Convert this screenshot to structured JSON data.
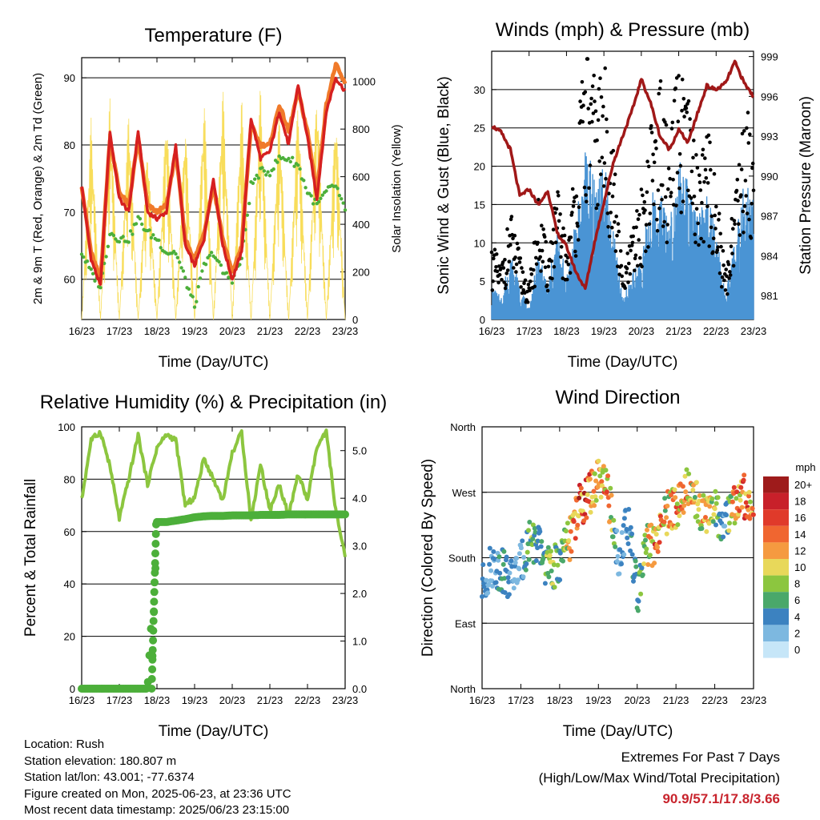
{
  "footer": {
    "location": "Location: Rush",
    "elevation": "Station elevation: 180.807 m",
    "latlon": "Station lat/lon: 43.001; -77.6374",
    "created": "Figure created on Mon, 2025-06-23, at 23:36 UTC",
    "recent": "Most recent data timestamp: 2025/06/23 23:15:00"
  },
  "extremes": {
    "title": "Extremes For Past 7 Days",
    "subtitle": "(High/Low/Max Wind/Total Precipitation)",
    "values": "90.9/57.1/17.8/3.66",
    "color": "#c8232c"
  },
  "chart_data": [
    {
      "type": "line",
      "title": "Temperature (F)",
      "xlabel": "Time (Day/UTC)",
      "ylabel": "2m & 9m T (Red, Orange) & 2m Td (Green)",
      "y2label": "Solar Insolation (Yellow)",
      "categories": [
        "16/23",
        "17/23",
        "18/23",
        "19/23",
        "20/23",
        "21/23",
        "22/23",
        "23/23"
      ],
      "x": [
        0,
        0.25,
        0.5,
        0.75,
        1,
        1.25,
        1.5,
        1.75,
        2,
        2.25,
        2.5,
        2.75,
        3,
        3.25,
        3.5,
        3.75,
        4,
        4.25,
        4.5,
        4.75,
        5,
        5.25,
        5.5,
        5.75,
        6,
        6.25,
        6.5,
        6.75,
        7
      ],
      "ylim": [
        54,
        93
      ],
      "yticks": [
        60,
        70,
        80,
        90
      ],
      "y2lim": [
        0,
        1100
      ],
      "y2ticks": [
        0,
        200,
        400,
        600,
        800,
        1000
      ],
      "series": [
        {
          "color": "#d62020",
          "values": [
            74,
            63,
            59,
            82,
            72,
            70,
            82,
            70,
            69,
            70,
            80,
            65,
            62,
            66,
            75,
            65,
            60,
            64,
            84,
            78,
            79,
            85,
            80,
            89,
            81,
            72,
            85,
            90,
            88
          ]
        },
        {
          "color": "#f07a2a",
          "values": [
            74,
            64,
            60,
            81,
            73,
            71,
            81,
            71,
            70,
            71,
            79,
            66,
            63,
            67,
            74,
            66,
            61,
            65,
            83,
            80,
            80,
            86,
            82,
            88,
            82,
            73,
            86,
            92,
            89
          ]
        },
        {
          "color": "#4caf3a",
          "values": [
            64,
            61,
            59,
            67,
            66,
            66,
            69,
            67,
            66,
            64,
            64,
            60,
            56,
            62,
            64,
            61,
            60,
            63,
            74,
            76,
            76,
            78,
            78,
            77,
            73,
            71,
            73,
            74,
            70
          ]
        },
        {
          "color": "#f8dd5a",
          "axis": "y2",
          "values": [
            0,
            850,
            0,
            950,
            0,
            900,
            0,
            750,
            0,
            900,
            0,
            850,
            0,
            950,
            0,
            1000,
            0,
            950,
            0,
            1000,
            0,
            900,
            0,
            950,
            0,
            1000,
            0,
            900,
            0
          ]
        }
      ]
    },
    {
      "type": "scatter",
      "title": "Winds (mph) & Pressure (mb)",
      "xlabel": "Time (Day/UTC)",
      "ylabel": "Sonic Wind & Gust (Blue, Black)",
      "y2label": "Station Pressure (Maroon)",
      "categories": [
        "16/23",
        "17/23",
        "18/23",
        "19/23",
        "20/23",
        "21/23",
        "22/23",
        "23/23"
      ],
      "ylim": [
        0,
        35
      ],
      "yticks": [
        0,
        5,
        10,
        15,
        20,
        25,
        30
      ],
      "y2lim": [
        979.2,
        999.4
      ],
      "y2ticks": [
        981,
        984,
        987,
        990,
        993,
        996,
        999
      ],
      "x": [
        0,
        0.25,
        0.5,
        0.75,
        1,
        1.25,
        1.5,
        1.75,
        2,
        2.25,
        2.5,
        2.75,
        3,
        3.25,
        3.5,
        3.75,
        4,
        4.25,
        4.5,
        4.75,
        5,
        5.25,
        5.5,
        5.75,
        6,
        6.25,
        6.5,
        6.75,
        7
      ],
      "series": [
        {
          "color": "#4a94d4",
          "values": [
            3,
            2,
            6,
            3,
            1,
            6,
            3,
            8,
            4,
            9,
            15,
            13,
            14,
            8,
            2,
            4,
            6,
            11,
            12,
            9,
            15,
            12,
            9,
            11,
            8,
            2,
            7,
            12,
            11
          ]
        },
        {
          "color": "#000000",
          "values": [
            7,
            5,
            10,
            6,
            3,
            11,
            6,
            12,
            7,
            15,
            26,
            22,
            24,
            16,
            4,
            8,
            12,
            18,
            22,
            16,
            24,
            20,
            15,
            18,
            13,
            4,
            13,
            20,
            18
          ]
        },
        {
          "color": "#a01818",
          "axis": "y2",
          "values": [
            993.8,
            993.3,
            992.0,
            988.5,
            989.0,
            987.8,
            988.9,
            985.7,
            984.7,
            982.8,
            981.5,
            985.0,
            988.0,
            991.0,
            993.0,
            994.9,
            997.3,
            995.5,
            993.0,
            992.0,
            993.5,
            992.5,
            994.7,
            996.8,
            996.5,
            997.0,
            998.6,
            997.0,
            996.0
          ]
        }
      ]
    },
    {
      "type": "line",
      "title": "Relative Humidity (%) & Precipitation (in)",
      "xlabel": "Time (Day/UTC)",
      "ylabel": "Percent & Total Rainfall",
      "categories": [
        "16/23",
        "17/23",
        "18/23",
        "19/23",
        "20/23",
        "21/23",
        "22/23",
        "23/23"
      ],
      "ylim": [
        0,
        100
      ],
      "yticks": [
        0,
        20,
        40,
        60,
        80,
        100
      ],
      "y2lim": [
        0,
        5.5
      ],
      "y2ticks": [
        "0.0",
        "1.0",
        "2.0",
        "3.0",
        "4.0",
        "5.0"
      ],
      "x": [
        0,
        0.25,
        0.5,
        0.75,
        1,
        1.25,
        1.5,
        1.75,
        2,
        2.25,
        2.5,
        2.75,
        3,
        3.25,
        3.5,
        3.75,
        4,
        4.25,
        4.5,
        4.75,
        5,
        5.25,
        5.5,
        5.75,
        6,
        6.25,
        6.5,
        6.75,
        7
      ],
      "series": [
        {
          "color": "#8cc63f",
          "values": [
            72,
            95,
            98,
            85,
            65,
            80,
            97,
            78,
            92,
            97,
            95,
            70,
            73,
            88,
            80,
            72,
            90,
            98,
            64,
            86,
            68,
            78,
            66,
            82,
            72,
            92,
            98,
            68,
            50
          ]
        },
        {
          "color": "#4caf3a",
          "axis": "y2",
          "values": [
            0,
            0,
            0,
            0,
            0,
            0,
            0,
            0,
            3.5,
            3.5,
            3.53,
            3.56,
            3.6,
            3.62,
            3.63,
            3.63,
            3.64,
            3.64,
            3.64,
            3.65,
            3.65,
            3.65,
            3.66,
            3.66,
            3.66,
            3.66,
            3.66,
            3.66,
            3.66
          ]
        }
      ]
    },
    {
      "type": "scatter",
      "title": "Wind Direction",
      "xlabel": "Time (Day/UTC)",
      "ylabel": "Direction (Colored By Speed)",
      "categories": [
        "16/23",
        "17/23",
        "18/23",
        "19/23",
        "20/23",
        "21/23",
        "22/23",
        "23/23"
      ],
      "ylim": [
        0,
        360
      ],
      "yticks": [
        "North",
        "East",
        "South",
        "West",
        "North"
      ],
      "colorbar_title": "mph",
      "colorbar_labels": [
        "20+",
        "18",
        "16",
        "14",
        "12",
        "10",
        "8",
        "6",
        "4",
        "2",
        "0"
      ],
      "colorbar_colors": [
        "#9e1b1b",
        "#c8202a",
        "#e03a2a",
        "#f06630",
        "#f59a40",
        "#e8d85a",
        "#8cc63f",
        "#4aa86a",
        "#3c82c0",
        "#7db8e0",
        "#c6e6f8"
      ],
      "x": [
        0,
        0.25,
        0.5,
        0.75,
        1,
        1.25,
        1.5,
        1.75,
        2,
        2.25,
        2.5,
        2.75,
        3,
        3.25,
        3.5,
        3.75,
        4,
        4.25,
        4.5,
        4.75,
        5,
        5.25,
        5.5,
        5.75,
        6,
        6.25,
        6.5,
        6.75,
        7
      ],
      "direction": [
        140,
        170,
        165,
        150,
        170,
        210,
        190,
        160,
        175,
        205,
        250,
        265,
        285,
        270,
        180,
        230,
        130,
        195,
        200,
        240,
        250,
        275,
        260,
        240,
        245,
        220,
        255,
        265,
        250
      ],
      "speed": [
        3,
        2,
        5,
        3,
        2,
        8,
        4,
        8,
        5,
        10,
        16,
        14,
        10,
        12,
        2,
        4,
        5,
        9,
        14,
        10,
        13,
        12,
        9,
        11,
        8,
        2,
        12,
        14,
        13
      ]
    }
  ]
}
